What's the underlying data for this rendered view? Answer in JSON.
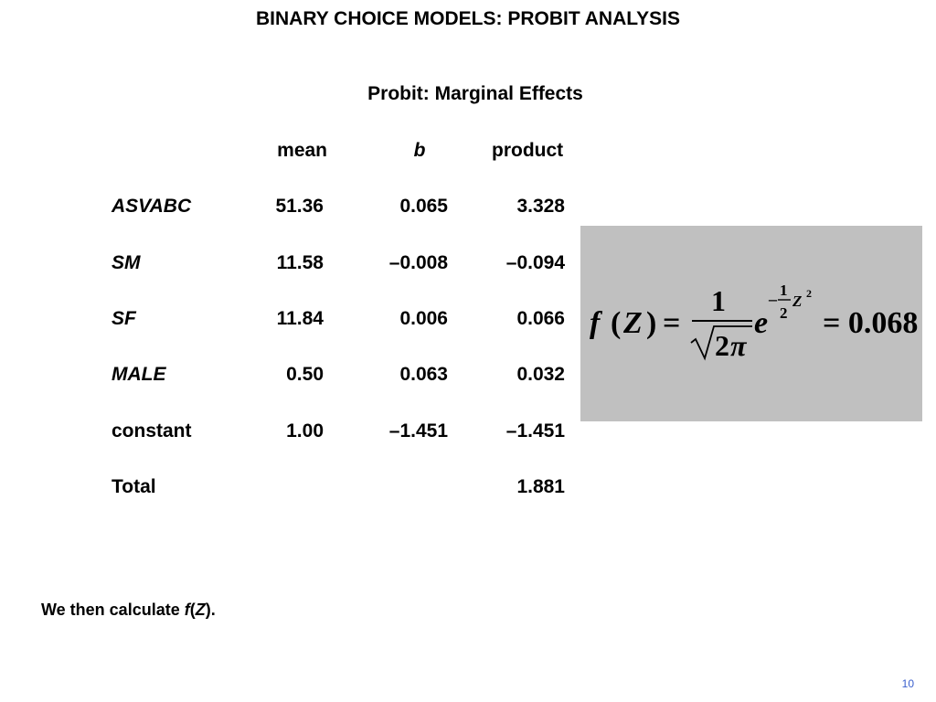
{
  "slide": {
    "title": "BINARY CHOICE MODELS: PROBIT ANALYSIS",
    "subtitle": "Probit: Marginal Effects",
    "page_number": "10",
    "page_number_color": "#3a5fcd"
  },
  "table": {
    "headers": {
      "mean": "mean",
      "b": "b",
      "product": "product"
    },
    "rows": [
      {
        "variable": "ASVABC",
        "mean": "51.36",
        "b": "0.065",
        "product": "3.328"
      },
      {
        "variable": "SM",
        "mean": "11.58",
        "b": "–0.008",
        "product": "–0.094"
      },
      {
        "variable": "SF",
        "mean": "11.84",
        "b": "0.006",
        "product": "0.066"
      },
      {
        "variable": "MALE",
        "mean": "0.50",
        "b": "0.063",
        "product": "0.032"
      },
      {
        "variable": "constant",
        "mean": "1.00",
        "b": "–1.451",
        "product": "–1.451"
      }
    ],
    "total": {
      "label": "Total",
      "product": "1.881"
    }
  },
  "formula": {
    "background": "#c0c0c0",
    "lhs_f": "f",
    "lhs_open": "(",
    "lhs_z": "Z",
    "lhs_close": ")",
    "equals": "=",
    "numerator": "1",
    "denominator_two": "2",
    "denominator_pi": "π",
    "base_e": "e",
    "exp_minus": "–",
    "exp_num": "1",
    "exp_den": "2",
    "exp_z": "Z",
    "exp_pow": "2",
    "result": "= 0.068"
  },
  "footer": {
    "prefix": "We then calculate ",
    "f": "f",
    "open": "(",
    "z": "Z",
    "close": ")."
  }
}
